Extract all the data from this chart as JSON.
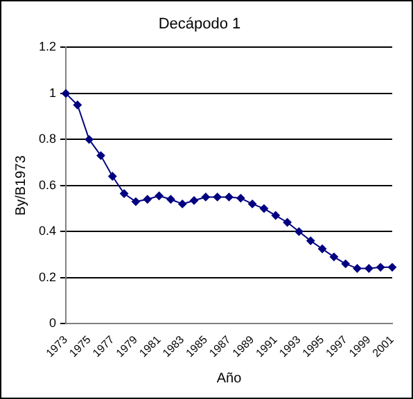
{
  "chart_data": {
    "type": "line",
    "title": "Decápodo 1",
    "xlabel": "Año",
    "ylabel": "By/B1973",
    "categories": [
      "1973",
      null,
      "1975",
      null,
      "1977",
      null,
      "1979",
      null,
      "1981",
      null,
      "1983",
      null,
      "1985",
      null,
      "1987",
      null,
      "1989",
      null,
      "1991",
      null,
      "1993",
      null,
      "1995",
      null,
      "1997",
      null,
      "1999",
      null,
      "2001"
    ],
    "series": [
      {
        "color": "#000080",
        "values": [
          1.0,
          0.95,
          0.8,
          0.73,
          0.64,
          0.565,
          0.53,
          0.54,
          0.555,
          0.54,
          0.52,
          0.535,
          0.55,
          0.55,
          0.55,
          0.545,
          0.52,
          0.5,
          0.47,
          0.44,
          0.4,
          0.36,
          0.325,
          0.29,
          0.26,
          0.24,
          0.24,
          0.245,
          0.245
        ]
      }
    ],
    "ylim": [
      0,
      1.2
    ],
    "yticks": [
      0,
      0.2,
      0.4,
      0.6,
      0.8,
      1,
      1.2
    ],
    "grid": "y",
    "legend": false,
    "marker": "diamond",
    "line_style": "solid"
  }
}
